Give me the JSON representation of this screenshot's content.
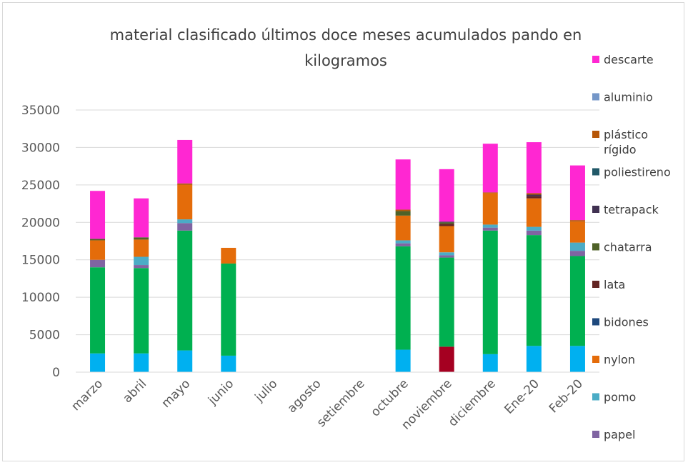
{
  "chart_data": {
    "type": "bar",
    "stacked": true,
    "title": [
      "material clasificado últimos doce meses acumulados pando en",
      "kilogramos"
    ],
    "xlabel": "",
    "ylabel": "",
    "ylim": [
      0,
      35000
    ],
    "yticks": [
      0,
      5000,
      10000,
      15000,
      20000,
      25000,
      30000,
      35000
    ],
    "grid": true,
    "legend_position": "right",
    "categories": [
      "marzo",
      "abril",
      "mayo",
      "junio",
      "julio",
      "agosto",
      "setiembre",
      "octubre",
      "noviembre",
      "diciembre",
      "Ene-20",
      "Feb-20"
    ],
    "series": [
      {
        "name": "",
        "color": "#00b0f0",
        "values": [
          2500,
          2500,
          2900,
          2200,
          0,
          0,
          0,
          3000,
          0,
          2400,
          3500,
          3500
        ]
      },
      {
        "name": "",
        "color": "#a50021",
        "values": [
          0,
          0,
          0,
          0,
          0,
          0,
          0,
          0,
          3400,
          0,
          0,
          0
        ]
      },
      {
        "name": "",
        "color": "#00b050",
        "values": [
          11500,
          11400,
          16000,
          12300,
          0,
          0,
          0,
          13800,
          11900,
          16500,
          14800,
          12000
        ]
      },
      {
        "name": "papel",
        "color": "#8064a2",
        "values": [
          1000,
          400,
          1000,
          0,
          0,
          0,
          0,
          400,
          300,
          400,
          600,
          700
        ]
      },
      {
        "name": "pomo",
        "color": "#4bacc6",
        "values": [
          0,
          1100,
          500,
          0,
          0,
          0,
          0,
          400,
          400,
          400,
          500,
          1100
        ]
      },
      {
        "name": "nylon",
        "color": "#e46c0a",
        "values": [
          2600,
          2300,
          4600,
          2100,
          0,
          0,
          0,
          3300,
          3500,
          4200,
          3800,
          2800
        ]
      },
      {
        "name": "bidones",
        "color": "#1f497d",
        "values": [
          0,
          0,
          0,
          0,
          0,
          0,
          0,
          0,
          0,
          0,
          0,
          0
        ]
      },
      {
        "name": "lata",
        "color": "#632523",
        "values": [
          0,
          0,
          0,
          0,
          0,
          0,
          0,
          0,
          300,
          0,
          300,
          0
        ]
      },
      {
        "name": "chatarra",
        "color": "#4f6228",
        "values": [
          200,
          300,
          0,
          0,
          0,
          0,
          0,
          600,
          200,
          0,
          0,
          0
        ]
      },
      {
        "name": "tetrapack",
        "color": "#403151",
        "values": [
          0,
          0,
          0,
          0,
          0,
          0,
          0,
          0,
          100,
          0,
          200,
          0
        ]
      },
      {
        "name": "poliestireno",
        "color": "#215968",
        "values": [
          0,
          0,
          0,
          0,
          0,
          0,
          0,
          0,
          0,
          0,
          0,
          0
        ]
      },
      {
        "name": "plástico rígido",
        "color": "#b65708",
        "values": [
          0,
          0,
          200,
          0,
          0,
          0,
          0,
          200,
          0,
          100,
          200,
          200
        ]
      },
      {
        "name": "aluminio",
        "color": "#7597c8",
        "values": [
          0,
          0,
          0,
          0,
          0,
          0,
          0,
          0,
          0,
          0,
          0,
          0
        ]
      },
      {
        "name": "descarte",
        "color": "#ff27d2",
        "values": [
          6400,
          5200,
          5800,
          0,
          0,
          0,
          0,
          6700,
          7000,
          6500,
          6800,
          7300
        ]
      }
    ],
    "legend": [
      {
        "label": "descarte",
        "color": "#ff27d2"
      },
      {
        "label": "aluminio",
        "color": "#7597c8"
      },
      {
        "label": "plástico",
        "label2": "rígido",
        "color": "#b65708"
      },
      {
        "label": "poliestireno",
        "color": "#215968"
      },
      {
        "label": "tetrapack",
        "color": "#403151"
      },
      {
        "label": "chatarra",
        "color": "#4f6228"
      },
      {
        "label": "lata",
        "color": "#632523"
      },
      {
        "label": "bidones",
        "color": "#1f497d"
      },
      {
        "label": "nylon",
        "color": "#e46c0a"
      },
      {
        "label": "pomo",
        "color": "#4bacc6"
      },
      {
        "label": "papel",
        "color": "#8064a2"
      }
    ]
  }
}
